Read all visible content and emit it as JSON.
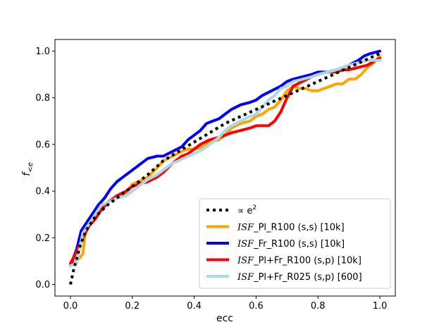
{
  "chart_data": {
    "type": "line",
    "title": "",
    "xlabel": "ecc",
    "ylabel_main": "f",
    "ylabel_sub": "<e",
    "xlim": [
      -0.05,
      1.05
    ],
    "ylim": [
      -0.05,
      1.05
    ],
    "xticks": [
      0.0,
      0.2,
      0.4,
      0.6,
      0.8,
      1.0
    ],
    "xtick_labels": [
      "0.0",
      "0.2",
      "0.4",
      "0.6",
      "0.8",
      "1.0"
    ],
    "yticks": [
      0.0,
      0.2,
      0.4,
      0.6,
      0.8,
      1.0
    ],
    "ytick_labels": [
      "0.0",
      "0.2",
      "0.4",
      "0.6",
      "0.8",
      "1.0"
    ],
    "legend_position": "lower-right",
    "series": [
      {
        "name": "∝ e²",
        "legend_prefix": "∝ e",
        "legend_sup": "2",
        "legend_suffix": "",
        "color": "#000000",
        "dash": "dotted",
        "x": [
          0.0,
          0.005,
          0.01,
          0.02,
          0.03,
          0.05,
          0.08,
          0.12,
          0.16,
          0.2,
          0.25,
          0.3,
          0.35,
          0.4,
          0.45,
          0.5,
          0.55,
          0.6,
          0.65,
          0.7,
          0.75,
          0.8,
          0.85,
          0.9,
          0.95,
          1.0
        ],
        "y": [
          0.0,
          0.03,
          0.06,
          0.11,
          0.16,
          0.23,
          0.29,
          0.34,
          0.38,
          0.42,
          0.47,
          0.53,
          0.57,
          0.61,
          0.65,
          0.69,
          0.72,
          0.75,
          0.78,
          0.81,
          0.84,
          0.87,
          0.9,
          0.93,
          0.96,
          0.99
        ]
      },
      {
        "name": "ISF_Pl_R100 (s,s) [10k]",
        "legend_prefix": "",
        "legend_isf": "ISF",
        "legend_suffix": "_Pl_R100 (s,s) [10k]",
        "color": "#ffa500",
        "dash": "solid",
        "x": [
          0.0,
          0.02,
          0.04,
          0.05,
          0.07,
          0.1,
          0.13,
          0.16,
          0.18,
          0.2,
          0.22,
          0.25,
          0.28,
          0.3,
          0.33,
          0.36,
          0.38,
          0.4,
          0.43,
          0.45,
          0.48,
          0.5,
          0.52,
          0.55,
          0.58,
          0.6,
          0.62,
          0.64,
          0.66,
          0.68,
          0.7,
          0.72,
          0.74,
          0.76,
          0.78,
          0.8,
          0.82,
          0.84,
          0.86,
          0.88,
          0.9,
          0.92,
          0.94,
          0.96,
          0.98,
          1.0
        ],
        "y": [
          0.08,
          0.1,
          0.13,
          0.24,
          0.28,
          0.33,
          0.36,
          0.38,
          0.39,
          0.43,
          0.44,
          0.46,
          0.5,
          0.53,
          0.55,
          0.57,
          0.58,
          0.58,
          0.59,
          0.61,
          0.62,
          0.64,
          0.67,
          0.69,
          0.7,
          0.72,
          0.73,
          0.75,
          0.76,
          0.79,
          0.83,
          0.85,
          0.84,
          0.84,
          0.83,
          0.83,
          0.84,
          0.85,
          0.86,
          0.86,
          0.88,
          0.88,
          0.9,
          0.93,
          0.95,
          0.98
        ]
      },
      {
        "name": "ISF_Fr_R100 (s,s) [10k]",
        "legend_prefix": "",
        "legend_isf": "ISF",
        "legend_suffix": "_Fr_R100 (s,s) [10k]",
        "color": "#0000ff",
        "dash": "solid",
        "x": [
          0.0,
          0.02,
          0.035,
          0.05,
          0.07,
          0.09,
          0.11,
          0.13,
          0.15,
          0.17,
          0.2,
          0.22,
          0.25,
          0.28,
          0.3,
          0.33,
          0.36,
          0.38,
          0.4,
          0.42,
          0.44,
          0.46,
          0.48,
          0.5,
          0.52,
          0.55,
          0.58,
          0.6,
          0.62,
          0.65,
          0.68,
          0.7,
          0.72,
          0.75,
          0.78,
          0.8,
          0.83,
          0.86,
          0.88,
          0.9,
          0.93,
          0.95,
          0.97,
          1.0
        ],
        "y": [
          0.08,
          0.15,
          0.23,
          0.26,
          0.3,
          0.34,
          0.37,
          0.41,
          0.44,
          0.46,
          0.49,
          0.51,
          0.54,
          0.55,
          0.55,
          0.57,
          0.59,
          0.62,
          0.64,
          0.66,
          0.69,
          0.7,
          0.71,
          0.73,
          0.75,
          0.77,
          0.78,
          0.79,
          0.81,
          0.83,
          0.85,
          0.87,
          0.88,
          0.89,
          0.9,
          0.91,
          0.91,
          0.92,
          0.93,
          0.94,
          0.96,
          0.98,
          0.99,
          1.0
        ]
      },
      {
        "name": "ISF_Pl+Fr_R100 (s,p) [10k]",
        "legend_prefix": "",
        "legend_isf": "ISF",
        "legend_suffix": "_Pl+Fr_R100 (s,p) [10k]",
        "color": "#ff0000",
        "dash": "solid",
        "x": [
          0.0,
          0.02,
          0.04,
          0.06,
          0.08,
          0.1,
          0.12,
          0.15,
          0.18,
          0.2,
          0.22,
          0.25,
          0.28,
          0.3,
          0.33,
          0.36,
          0.38,
          0.4,
          0.42,
          0.45,
          0.48,
          0.5,
          0.52,
          0.55,
          0.58,
          0.6,
          0.62,
          0.64,
          0.66,
          0.68,
          0.7,
          0.72,
          0.75,
          0.78,
          0.8,
          0.83,
          0.86,
          0.88,
          0.9,
          0.93,
          0.96,
          1.0
        ],
        "y": [
          0.09,
          0.14,
          0.2,
          0.25,
          0.28,
          0.32,
          0.35,
          0.38,
          0.4,
          0.42,
          0.43,
          0.44,
          0.46,
          0.48,
          0.52,
          0.55,
          0.56,
          0.58,
          0.6,
          0.62,
          0.63,
          0.64,
          0.65,
          0.66,
          0.67,
          0.68,
          0.68,
          0.68,
          0.7,
          0.74,
          0.8,
          0.85,
          0.87,
          0.89,
          0.9,
          0.91,
          0.91,
          0.92,
          0.92,
          0.93,
          0.94,
          0.97
        ]
      },
      {
        "name": "ISF_Pl+Fr_R025 (s,p) [600]",
        "legend_prefix": "",
        "legend_isf": "ISF",
        "legend_suffix": "_Pl+Fr_R025 (s,p) [600]",
        "color": "#add8e6",
        "dash": "solid",
        "x": [
          0.0,
          0.02,
          0.04,
          0.06,
          0.08,
          0.1,
          0.12,
          0.15,
          0.18,
          0.2,
          0.22,
          0.25,
          0.28,
          0.3,
          0.33,
          0.35,
          0.38,
          0.4,
          0.43,
          0.45,
          0.48,
          0.5,
          0.52,
          0.55,
          0.58,
          0.6,
          0.62,
          0.64,
          0.66,
          0.68,
          0.7,
          0.72,
          0.75,
          0.78,
          0.8,
          0.83,
          0.86,
          0.88,
          0.9,
          0.93,
          0.96,
          1.0
        ],
        "y": [
          0.08,
          0.09,
          0.22,
          0.26,
          0.3,
          0.34,
          0.35,
          0.37,
          0.38,
          0.4,
          0.42,
          0.45,
          0.47,
          0.49,
          0.52,
          0.53,
          0.55,
          0.56,
          0.58,
          0.6,
          0.63,
          0.66,
          0.68,
          0.7,
          0.72,
          0.73,
          0.76,
          0.79,
          0.81,
          0.84,
          0.85,
          0.87,
          0.88,
          0.89,
          0.9,
          0.91,
          0.92,
          0.93,
          0.94,
          0.95,
          0.96,
          0.96
        ]
      }
    ]
  }
}
